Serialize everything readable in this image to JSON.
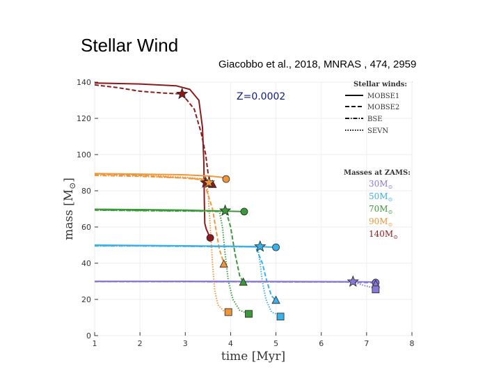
{
  "slide": {
    "title": "Stellar Wind",
    "citation": "Giacobbo et al., 2018, MNRAS , 474, 2959"
  },
  "chart_data": {
    "type": "line",
    "annotation": "Z=0.0002",
    "xlabel": "time [Myr]",
    "ylabel_text": "mass [M",
    "ylabel_sub": "⊙",
    "ylabel_close": "]",
    "xlim": [
      1,
      8
    ],
    "ylim": [
      0,
      140
    ],
    "xticks": [
      1,
      2,
      3,
      4,
      5,
      6,
      7,
      8
    ],
    "yticks": [
      0,
      20,
      40,
      60,
      80,
      100,
      120,
      140
    ],
    "legend_winds": {
      "title": "Stellar winds:",
      "entries": [
        {
          "label": "MOBSE1",
          "style": "solid"
        },
        {
          "label": "MOBSE2",
          "style": "dashed"
        },
        {
          "label": "BSE",
          "style": "dashdot"
        },
        {
          "label": "SEVN",
          "style": "dotted"
        }
      ]
    },
    "legend_masses": {
      "title": "Masses at ZAMS:",
      "entries": [
        {
          "label": "30M",
          "sun": "⊙",
          "color": "#8878d8"
        },
        {
          "label": "50M",
          "sun": "⊙",
          "color": "#3ab0e8"
        },
        {
          "label": "70M",
          "sun": "⊙",
          "color": "#3a9a3a"
        },
        {
          "label": "90M",
          "sun": "⊙",
          "color": "#f0963a"
        },
        {
          "label": "140M",
          "sun": "⊙",
          "color": "#8b1a1a"
        }
      ]
    },
    "series": [
      {
        "name": "140M",
        "color": "#8b1a1a",
        "lines": [
          {
            "style": "solid",
            "points": [
              [
                1,
                139.5
              ],
              [
                2,
                139
              ],
              [
                2.8,
                138
              ],
              [
                3.1,
                136
              ],
              [
                3.3,
                130
              ],
              [
                3.38,
                115
              ],
              [
                3.41,
                95
              ],
              [
                3.42,
                75
              ],
              [
                3.43,
                62
              ],
              [
                3.46,
                59
              ],
              [
                3.55,
                54
              ]
            ]
          },
          {
            "style": "dashed",
            "points": [
              [
                1,
                138.5
              ],
              [
                1.5,
                137
              ],
              [
                2,
                135
              ],
              [
                2.5,
                134
              ],
              [
                2.93,
                133.5
              ],
              [
                3.2,
                125
              ],
              [
                3.35,
                112
              ],
              [
                3.45,
                100
              ],
              [
                3.5,
                90
              ],
              [
                3.55,
                85
              ],
              [
                3.6,
                83
              ]
            ]
          }
        ],
        "markers": [
          {
            "shape": "star",
            "x": 2.93,
            "y": 133.5
          },
          {
            "shape": "circle",
            "x": 3.55,
            "y": 54
          },
          {
            "shape": "star",
            "x": 3.45,
            "y": 84.5
          },
          {
            "shape": "triangle",
            "x": 3.6,
            "y": 83.5
          }
        ]
      },
      {
        "name": "90M",
        "color": "#f0963a",
        "lines": [
          {
            "style": "solid",
            "points": [
              [
                1,
                89.5
              ],
              [
                2,
                89.2
              ],
              [
                3,
                88.8
              ],
              [
                3.5,
                88.2
              ],
              [
                3.8,
                87.5
              ],
              [
                3.9,
                86.5
              ]
            ]
          },
          {
            "style": "dashed",
            "points": [
              [
                1,
                89.2
              ],
              [
                2,
                88.5
              ],
              [
                3,
                87
              ],
              [
                3.4,
                86
              ],
              [
                3.6,
                70
              ],
              [
                3.75,
                48
              ],
              [
                3.85,
                40
              ]
            ]
          },
          {
            "style": "dashdot",
            "points": [
              [
                1,
                88.5
              ],
              [
                2,
                88
              ],
              [
                3,
                87
              ],
              [
                3.4,
                86.5
              ],
              [
                3.55,
                84
              ]
            ]
          },
          {
            "style": "dotted",
            "points": [
              [
                1,
                89.3
              ],
              [
                2,
                88.8
              ],
              [
                3,
                87.5
              ],
              [
                3.4,
                86.5
              ],
              [
                3.5,
                80
              ],
              [
                3.55,
                60
              ],
              [
                3.6,
                40
              ],
              [
                3.65,
                25
              ],
              [
                3.72,
                17
              ],
              [
                3.85,
                13.5
              ],
              [
                3.95,
                13
              ]
            ]
          }
        ],
        "markers": [
          {
            "shape": "circle",
            "x": 3.9,
            "y": 86.5
          },
          {
            "shape": "star",
            "x": 3.52,
            "y": 84.5
          },
          {
            "shape": "triangle",
            "x": 3.85,
            "y": 39.5
          },
          {
            "shape": "square",
            "x": 3.95,
            "y": 13
          }
        ]
      },
      {
        "name": "70M",
        "color": "#3a9a3a",
        "lines": [
          {
            "style": "solid",
            "points": [
              [
                1,
                69.8
              ],
              [
                2,
                69.6
              ],
              [
                3,
                69.3
              ],
              [
                3.5,
                69
              ],
              [
                4,
                68.7
              ],
              [
                4.3,
                68.5
              ]
            ]
          },
          {
            "style": "dashed",
            "points": [
              [
                1,
                69.5
              ],
              [
                2,
                69.2
              ],
              [
                3,
                69
              ],
              [
                3.7,
                68.9
              ],
              [
                3.9,
                68.8
              ],
              [
                4,
                60
              ],
              [
                4.1,
                45
              ],
              [
                4.2,
                33
              ],
              [
                4.28,
                29.5
              ]
            ]
          },
          {
            "style": "dashdot",
            "points": [
              [
                1,
                69.3
              ],
              [
                2,
                69
              ],
              [
                3,
                68.8
              ],
              [
                3.7,
                68.6
              ],
              [
                3.9,
                68.5
              ]
            ]
          },
          {
            "style": "dotted",
            "points": [
              [
                1,
                69.5
              ],
              [
                2,
                69.2
              ],
              [
                3,
                69
              ],
              [
                3.75,
                68.9
              ],
              [
                3.82,
                60
              ],
              [
                3.88,
                45
              ],
              [
                3.95,
                30
              ],
              [
                4.05,
                20
              ],
              [
                4.2,
                14
              ],
              [
                4.4,
                12
              ]
            ]
          }
        ],
        "markers": [
          {
            "shape": "circle",
            "x": 4.3,
            "y": 68.5
          },
          {
            "shape": "star",
            "x": 3.88,
            "y": 69
          },
          {
            "shape": "triangle",
            "x": 4.28,
            "y": 29.5
          },
          {
            "shape": "square",
            "x": 4.4,
            "y": 12
          }
        ]
      },
      {
        "name": "50M",
        "color": "#3ab0e8",
        "lines": [
          {
            "style": "solid",
            "points": [
              [
                1,
                50
              ],
              [
                2,
                49.8
              ],
              [
                3,
                49.6
              ],
              [
                4,
                49.4
              ],
              [
                4.6,
                49.2
              ],
              [
                5,
                48.8
              ]
            ]
          },
          {
            "style": "dashed",
            "points": [
              [
                1,
                49.8
              ],
              [
                2,
                49.7
              ],
              [
                3,
                49.5
              ],
              [
                4,
                49.3
              ],
              [
                4.55,
                49
              ],
              [
                4.7,
                40
              ],
              [
                4.8,
                30
              ],
              [
                4.9,
                22
              ],
              [
                5,
                19.5
              ]
            ]
          },
          {
            "style": "dashdot",
            "points": [
              [
                1,
                49.5
              ],
              [
                2,
                49.5
              ],
              [
                3,
                49.3
              ],
              [
                4,
                49.1
              ],
              [
                4.65,
                49
              ]
            ]
          },
          {
            "style": "dotted",
            "points": [
              [
                1,
                49.7
              ],
              [
                2,
                49.6
              ],
              [
                3,
                49.4
              ],
              [
                4,
                49.2
              ],
              [
                4.6,
                49
              ],
              [
                4.65,
                40
              ],
              [
                4.7,
                30
              ],
              [
                4.78,
                20
              ],
              [
                4.9,
                13
              ],
              [
                5.1,
                11
              ]
            ]
          }
        ],
        "markers": [
          {
            "shape": "circle",
            "x": 5.0,
            "y": 48.8
          },
          {
            "shape": "star",
            "x": 4.65,
            "y": 49.2
          },
          {
            "shape": "triangle",
            "x": 5.0,
            "y": 19.5
          },
          {
            "shape": "square",
            "x": 5.1,
            "y": 10.5
          }
        ]
      },
      {
        "name": "30M",
        "color": "#8878d8",
        "lines": [
          {
            "style": "solid",
            "points": [
              [
                1,
                30
              ],
              [
                3,
                30
              ],
              [
                5,
                29.9
              ],
              [
                6.5,
                29.8
              ],
              [
                7.2,
                29.6
              ]
            ]
          },
          {
            "style": "dashed",
            "points": [
              [
                1,
                29.8
              ],
              [
                3,
                29.8
              ],
              [
                5,
                29.7
              ],
              [
                6.5,
                29.6
              ],
              [
                7.2,
                29.2
              ]
            ]
          },
          {
            "style": "dashdot",
            "points": [
              [
                1,
                29.9
              ],
              [
                3,
                29.9
              ],
              [
                5,
                29.8
              ],
              [
                6.7,
                29.7
              ]
            ]
          },
          {
            "style": "dotted",
            "points": [
              [
                1,
                29.9
              ],
              [
                3,
                29.8
              ],
              [
                5,
                29.7
              ],
              [
                6.7,
                29.6
              ],
              [
                6.9,
                28
              ],
              [
                7.05,
                27
              ],
              [
                7.2,
                26
              ]
            ]
          }
        ],
        "markers": [
          {
            "shape": "circle",
            "x": 7.2,
            "y": 29.3
          },
          {
            "shape": "star",
            "x": 6.7,
            "y": 29.8
          },
          {
            "shape": "triangle",
            "x": 7.2,
            "y": 28.3
          },
          {
            "shape": "square",
            "x": 7.2,
            "y": 25.5
          }
        ]
      }
    ]
  }
}
